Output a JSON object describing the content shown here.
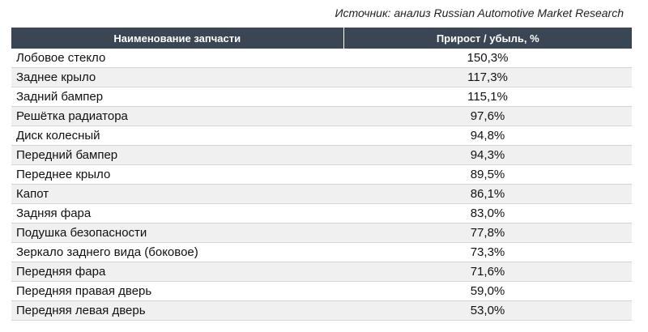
{
  "source": "Источник: анализ Russian Automotive Market Research",
  "table": {
    "headers": [
      "Наименование запчасти",
      "Прирост / убыль, %"
    ],
    "rows": [
      {
        "name": "Лобовое стекло",
        "value": "150,3%"
      },
      {
        "name": "Заднее крыло",
        "value": "117,3%"
      },
      {
        "name": "Задний бампер",
        "value": "115,1%"
      },
      {
        "name": "Решётка радиатора",
        "value": "97,6%"
      },
      {
        "name": "Диск колесный",
        "value": "94,8%"
      },
      {
        "name": "Передний бампер",
        "value": "94,3%"
      },
      {
        "name": "Переднее крыло",
        "value": "89,5%"
      },
      {
        "name": "Капот",
        "value": "86,1%"
      },
      {
        "name": "Задняя фара",
        "value": "83,0%"
      },
      {
        "name": "Подушка безопасности",
        "value": "77,8%"
      },
      {
        "name": "Зеркало заднего вида (боковое)",
        "value": "73,3%"
      },
      {
        "name": "Передняя фара",
        "value": "71,6%"
      },
      {
        "name": "Передняя правая дверь",
        "value": "59,0%"
      },
      {
        "name": "Передняя левая дверь",
        "value": "53,0%"
      }
    ]
  },
  "colors": {
    "header_bg": "#3a4653",
    "header_text": "#ffffff",
    "row_alt_bg": "#f0f0f0"
  }
}
